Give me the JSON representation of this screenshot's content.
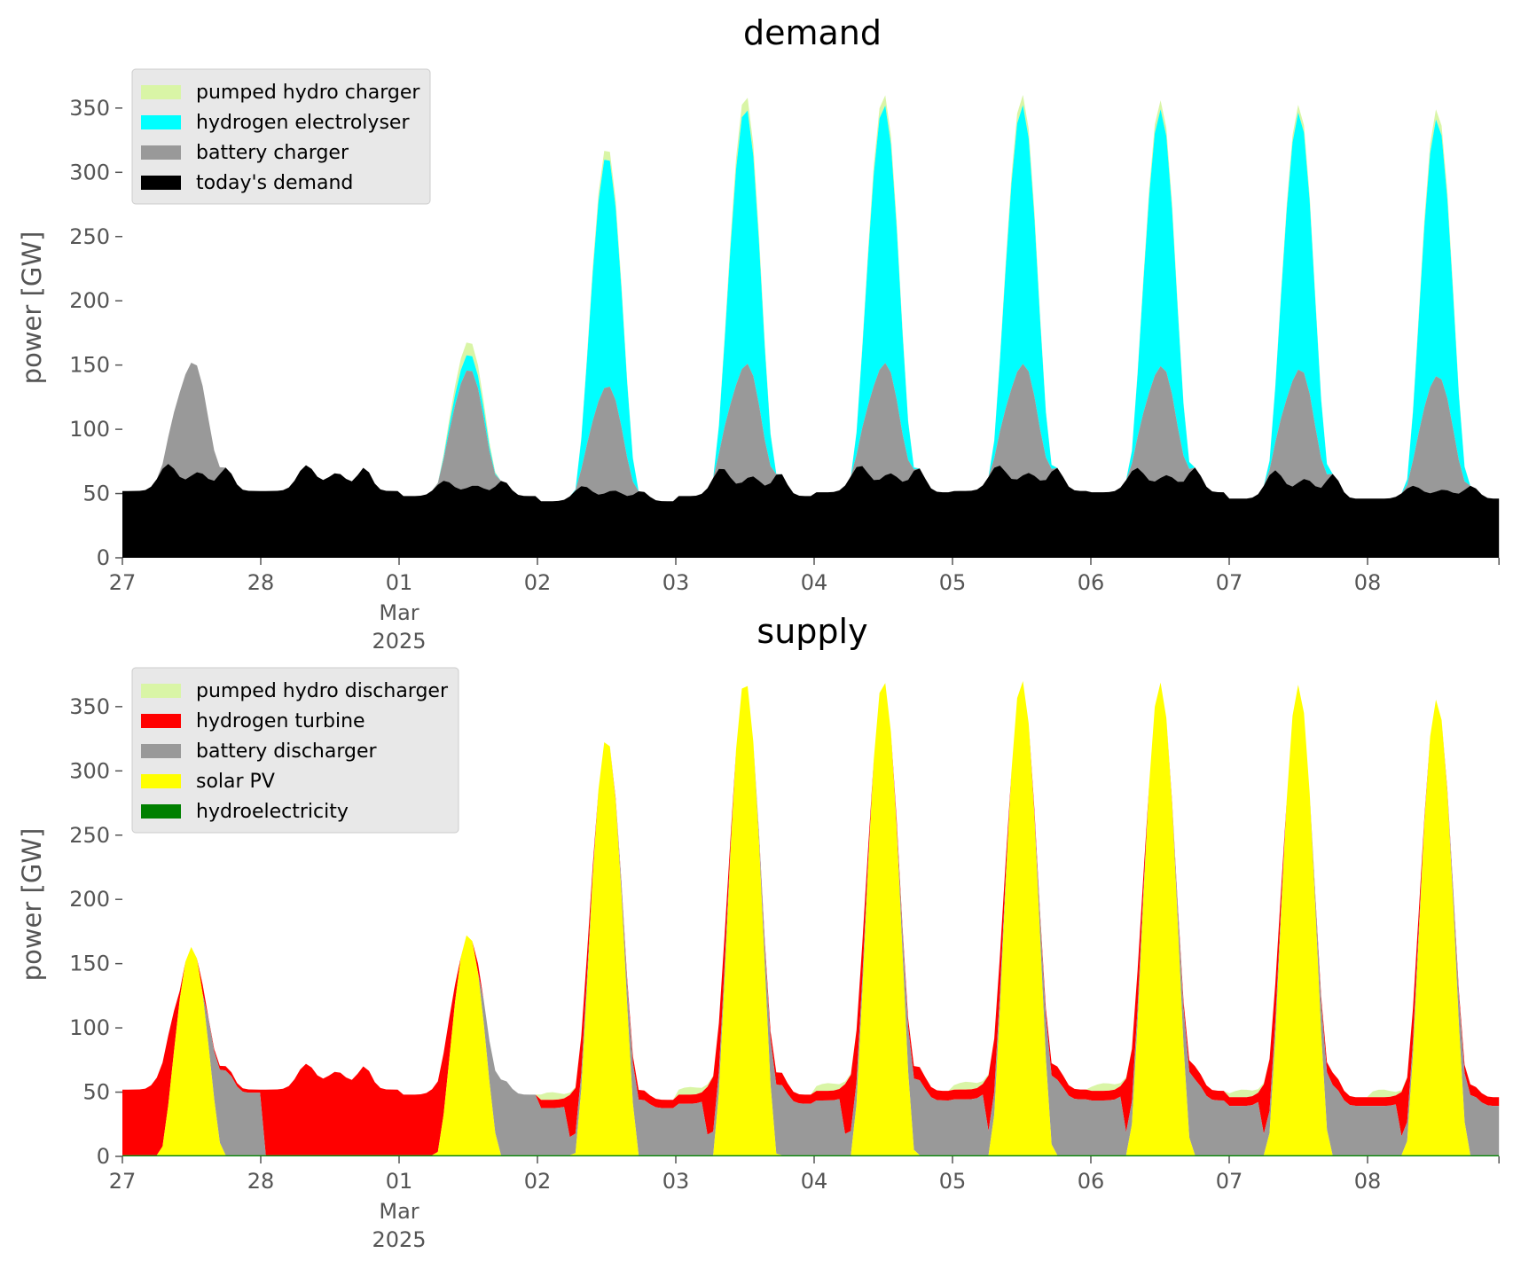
{
  "colors": {
    "pumped_hydro": "#d9f5a6",
    "hydrogen_electrolyser": "#00ffff",
    "hydrogen_turbine": "#ff0000",
    "battery": "#999999",
    "demand": "#000000",
    "solar": "#ffff00",
    "hydroelectricity": "#008000",
    "legend_bg": "#e8e8e8"
  },
  "chart_data": [
    {
      "type": "area",
      "stacked": true,
      "title": "demand",
      "ylabel": "power [GW]",
      "xlabel": "",
      "ylim": [
        0,
        380
      ],
      "yticks": [
        0,
        50,
        100,
        150,
        200,
        250,
        300,
        350
      ],
      "xlim_days": [
        0,
        9.95
      ],
      "xticks": [
        {
          "x": 0,
          "label": "27",
          "sub": ""
        },
        {
          "x": 1,
          "label": "28",
          "sub": ""
        },
        {
          "x": 2,
          "label": "01",
          "sub": "Mar\n2025"
        },
        {
          "x": 3,
          "label": "02",
          "sub": ""
        },
        {
          "x": 4,
          "label": "03",
          "sub": ""
        },
        {
          "x": 5,
          "label": "04",
          "sub": ""
        },
        {
          "x": 6,
          "label": "05",
          "sub": ""
        },
        {
          "x": 7,
          "label": "06",
          "sub": ""
        },
        {
          "x": 8,
          "label": "07",
          "sub": ""
        },
        {
          "x": 9,
          "label": "08",
          "sub": ""
        }
      ],
      "legend_position": "top-left",
      "days": [
        "27",
        "28",
        "01 Mar 2025",
        "02",
        "03",
        "04",
        "05",
        "06",
        "07",
        "08"
      ],
      "series": [
        {
          "name": "today's demand",
          "color": "#000000",
          "profile": "demand",
          "daily_min": [
            52,
            52,
            48,
            44,
            48,
            51,
            52,
            51,
            46,
            46
          ],
          "daily_peak": [
            73,
            72,
            60,
            56,
            70,
            72,
            72,
            70,
            68,
            56
          ],
          "evening": [
            70,
            70,
            60,
            52,
            66,
            70,
            70,
            70,
            65,
            56
          ]
        },
        {
          "name": "battery charger",
          "color": "#999999",
          "profile": "solar",
          "daily_peak": [
            88,
            0,
            92,
            83,
            90,
            88,
            87,
            87,
            88,
            90
          ]
        },
        {
          "name": "hydrogen electrolyser",
          "color": "#00ffff",
          "profile": "solar",
          "daily_peak": [
            0,
            0,
            12,
            180,
            200,
            202,
            202,
            200,
            200,
            200
          ]
        },
        {
          "name": "pumped hydro charger",
          "color": "#d9f5a6",
          "profile": "solar",
          "daily_peak": [
            0,
            0,
            10,
            7,
            10,
            8,
            8,
            7,
            6,
            8
          ]
        }
      ]
    },
    {
      "type": "area",
      "stacked": true,
      "title": "supply",
      "ylabel": "power [GW]",
      "xlabel": "",
      "ylim": [
        0,
        380
      ],
      "yticks": [
        0,
        50,
        100,
        150,
        200,
        250,
        300,
        350
      ],
      "xlim_days": [
        0,
        9.95
      ],
      "xticks": [
        {
          "x": 0,
          "label": "27",
          "sub": ""
        },
        {
          "x": 1,
          "label": "28",
          "sub": ""
        },
        {
          "x": 2,
          "label": "01",
          "sub": "Mar\n2025"
        },
        {
          "x": 3,
          "label": "02",
          "sub": ""
        },
        {
          "x": 4,
          "label": "03",
          "sub": ""
        },
        {
          "x": 5,
          "label": "04",
          "sub": ""
        },
        {
          "x": 6,
          "label": "05",
          "sub": ""
        },
        {
          "x": 7,
          "label": "06",
          "sub": ""
        },
        {
          "x": 8,
          "label": "07",
          "sub": ""
        },
        {
          "x": 9,
          "label": "08",
          "sub": ""
        }
      ],
      "legend_position": "top-left",
      "series": [
        {
          "name": "hydroelectricity",
          "color": "#008000",
          "approx_level": 1
        },
        {
          "name": "solar PV",
          "color": "#ffff00",
          "daily_peak": [
            162,
            0,
            172,
            325,
            370,
            370,
            370,
            368,
            366,
            355
          ]
        },
        {
          "name": "battery discharger",
          "color": "#999999",
          "night_share_days": [
            "27 evening",
            "01 evening",
            "02",
            "03",
            "04",
            "05",
            "06",
            "07",
            "08"
          ]
        },
        {
          "name": "hydrogen turbine",
          "color": "#ff0000",
          "night_share_days": [
            "27",
            "28",
            "01",
            "02",
            "03",
            "04",
            "05",
            "06",
            "07",
            "08"
          ]
        },
        {
          "name": "pumped hydro discharger",
          "color": "#d9f5a6",
          "approx_level": 6
        }
      ],
      "legend_order": [
        "pumped hydro discharger",
        "hydrogen turbine",
        "battery discharger",
        "solar PV",
        "hydroelectricity"
      ]
    }
  ]
}
